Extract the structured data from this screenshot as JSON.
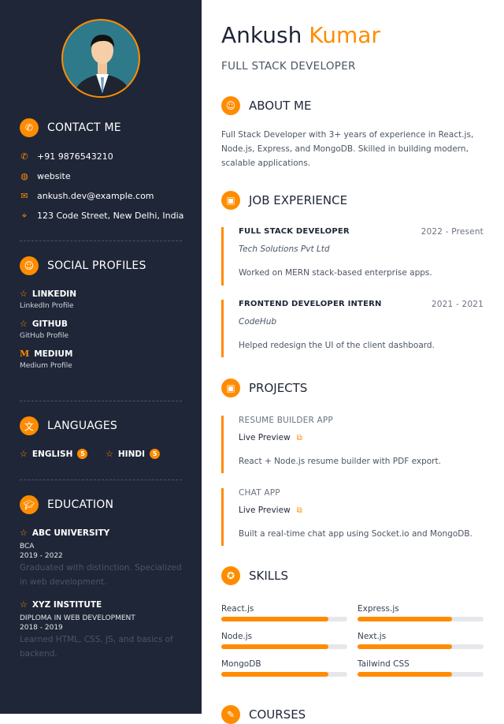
{
  "profile": {
    "first_name": "Ankush",
    "last_name": "Kumar",
    "title": "FULL STACK DEVELOPER"
  },
  "colors": {
    "accent": "#ff8c00",
    "sidebar": "#1f2637"
  },
  "contact": {
    "heading": "CONTACT ME",
    "items": [
      {
        "icon": "phone-icon",
        "text": "+91 9876543210"
      },
      {
        "icon": "globe-icon",
        "text": "website"
      },
      {
        "icon": "mail-icon",
        "text": "ankush.dev@example.com"
      },
      {
        "icon": "location-icon",
        "text": "123 Code Street, New Delhi, India"
      }
    ]
  },
  "social": {
    "heading": "SOCIAL PROFILES",
    "items": [
      {
        "icon": "star-icon",
        "name": "LINKEDIN",
        "label": "LinkedIn Profile"
      },
      {
        "icon": "star-icon",
        "name": "GITHUB",
        "label": "GitHub Profile"
      },
      {
        "icon": "medium-icon",
        "name": "MEDIUM",
        "label": "Medium Profile"
      }
    ]
  },
  "languages": {
    "heading": "LANGUAGES",
    "items": [
      {
        "name": "ENGLISH",
        "level": "5"
      },
      {
        "name": "HINDI",
        "level": "5"
      }
    ]
  },
  "education": {
    "heading": "EDUCATION",
    "items": [
      {
        "school": "ABC UNIVERSITY",
        "degree": "BCA",
        "years": "2019 - 2022",
        "desc": "Graduated with distinction. Specialized in web development."
      },
      {
        "school": "XYZ INSTITUTE",
        "degree": "DIPLOMA IN WEB DEVELOPMENT",
        "years": "2018 - 2019",
        "desc": "Learned HTML, CSS, JS, and basics of backend."
      }
    ]
  },
  "about": {
    "heading": "ABOUT ME",
    "text": "Full Stack Developer with 3+ years of experience in React.js, Node.js, Express, and MongoDB. Skilled in building modern, scalable applications."
  },
  "experience": {
    "heading": "JOB EXPERIENCE",
    "items": [
      {
        "role": "FULL STACK DEVELOPER",
        "dates": "2022 - Present",
        "company": "Tech Solutions Pvt Ltd",
        "desc": "Worked on MERN stack-based enterprise apps."
      },
      {
        "role": "FRONTEND DEVELOPER INTERN",
        "dates": "2021 - 2021",
        "company": "CodeHub",
        "desc": "Helped redesign the UI of the client dashboard."
      }
    ]
  },
  "projects": {
    "heading": "PROJECTS",
    "items": [
      {
        "name": "RESUME BUILDER APP",
        "link": "Live Preview",
        "desc": "React + Node.js resume builder with PDF export."
      },
      {
        "name": "CHAT APP",
        "link": "Live Preview",
        "desc": "Built a real-time chat app using Socket.io and MongoDB."
      }
    ]
  },
  "skills": {
    "heading": "SKILLS",
    "items": [
      {
        "name": "React.js",
        "level": 85
      },
      {
        "name": "Express.js",
        "level": 75
      },
      {
        "name": "Node.js",
        "level": 85
      },
      {
        "name": "Next.js",
        "level": 75
      },
      {
        "name": "MongoDB",
        "level": 85
      },
      {
        "name": "Tailwind CSS",
        "level": 75
      }
    ]
  },
  "courses": {
    "heading": "COURSES"
  }
}
